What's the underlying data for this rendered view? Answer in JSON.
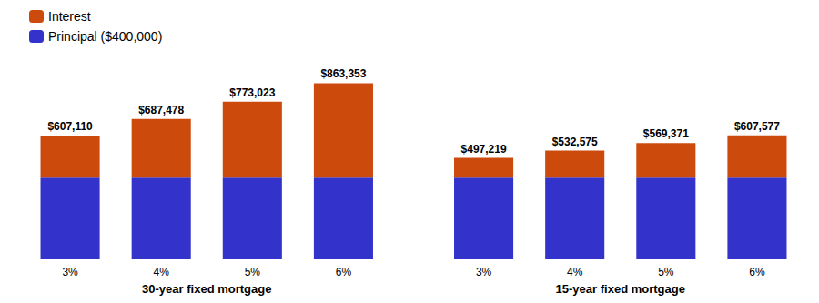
{
  "chart_data": [
    {
      "type": "bar",
      "stacked": true,
      "xlabel": "30-year fixed mortgage",
      "categories": [
        "3%",
        "4%",
        "5%",
        "6%"
      ],
      "series": [
        {
          "name": "Principal ($400,000)",
          "color": "#3333CC",
          "values": [
            400000,
            400000,
            400000,
            400000
          ]
        },
        {
          "name": "Interest",
          "color": "#CC4A0C",
          "values": [
            207110,
            287478,
            373023,
            463353
          ]
        }
      ],
      "totals": [
        607110,
        687478,
        773023,
        863353
      ],
      "total_labels": [
        "$607,110",
        "$687,478",
        "$773,023",
        "$863,353"
      ],
      "ylim": [
        0,
        950000
      ],
      "yticks": [],
      "tick_labels": "x",
      "grid": false,
      "legend": "upper left"
    },
    {
      "type": "bar",
      "stacked": true,
      "xlabel": "15-year fixed mortgage",
      "categories": [
        "3%",
        "4%",
        "5%",
        "6%"
      ],
      "series": [
        {
          "name": "Principal ($400,000)",
          "color": "#3333CC",
          "values": [
            400000,
            400000,
            400000,
            400000
          ]
        },
        {
          "name": "Interest",
          "color": "#CC4A0C",
          "values": [
            97219,
            132575,
            169371,
            207577
          ]
        }
      ],
      "totals": [
        497219,
        532575,
        569371,
        607577
      ],
      "total_labels": [
        "$497,219",
        "$532,575",
        "$569,371",
        "$607,577"
      ],
      "ylim": [
        0,
        950000
      ],
      "yticks": [],
      "tick_labels": "x",
      "grid": false
    }
  ]
}
